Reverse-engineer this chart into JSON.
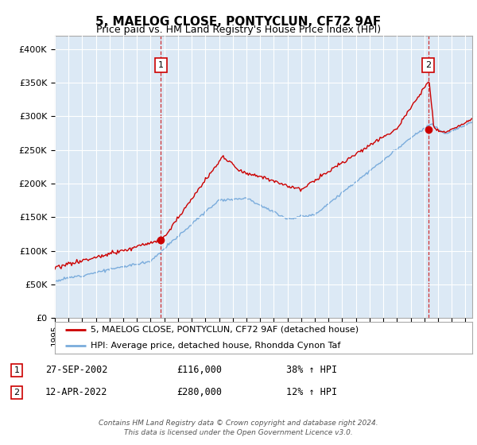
{
  "title": "5, MAELOG CLOSE, PONTYCLUN, CF72 9AF",
  "subtitle": "Price paid vs. HM Land Registry's House Price Index (HPI)",
  "ylim": [
    0,
    420000
  ],
  "yticks": [
    0,
    50000,
    100000,
    150000,
    200000,
    250000,
    300000,
    350000,
    400000
  ],
  "ytick_labels": [
    "£0",
    "£50K",
    "£100K",
    "£150K",
    "£200K",
    "£250K",
    "£300K",
    "£350K",
    "£400K"
  ],
  "background_color": "#dce9f5",
  "fig_bg_color": "#ffffff",
  "red_line_color": "#cc0000",
  "blue_line_color": "#7aacdc",
  "purchase1_year": 2002.74,
  "purchase1_price": 116000,
  "purchase2_year": 2022.28,
  "purchase2_price": 280000,
  "legend_entry1": "5, MAELOG CLOSE, PONTYCLUN, CF72 9AF (detached house)",
  "legend_entry2": "HPI: Average price, detached house, Rhondda Cynon Taf",
  "annotation1_date": "27-SEP-2002",
  "annotation1_price": "£116,000",
  "annotation1_hpi": "38% ↑ HPI",
  "annotation2_date": "12-APR-2022",
  "annotation2_price": "£280,000",
  "annotation2_hpi": "12% ↑ HPI",
  "footer": "Contains HM Land Registry data © Crown copyright and database right 2024.\nThis data is licensed under the Open Government Licence v3.0."
}
